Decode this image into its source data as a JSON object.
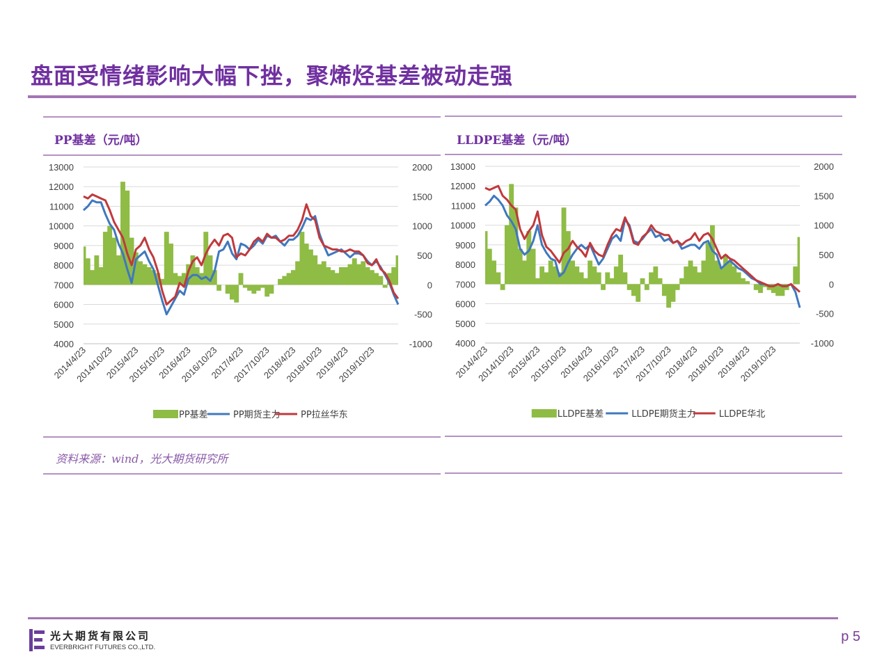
{
  "page": {
    "title": "盘面受情绪影响大幅下挫，聚烯烃基差被动走强",
    "source": "资料来源：wind，光大期货研究所",
    "page_number": "p 5",
    "company_cn": "光大期货有限公司",
    "company_en": "EVERBRIGHT FUTURES CO.,LTD."
  },
  "colors": {
    "accent": "#7030a0",
    "rule": "#a474b5",
    "basis": "#8fbc45",
    "futures": "#3f78be",
    "spot": "#c0393c",
    "grid": "#d9d9d9"
  },
  "icons": {
    "logo": "everbright-logo-icon"
  },
  "chart_data": [
    {
      "type": "line",
      "title": "PP基差（元/吨）",
      "x_tick_labels": [
        "2014/4/23",
        "2014/10/23",
        "2015/4/23",
        "2015/10/23",
        "2016/4/23",
        "2016/10/23",
        "2017/4/23",
        "2017/10/23",
        "2018/4/23",
        "2018/10/23",
        "2019/4/23",
        "2019/10/23"
      ],
      "x_ticks": [
        0,
        6,
        12,
        18,
        24,
        30,
        36,
        42,
        48,
        54,
        60,
        66
      ],
      "x_range": [
        0,
        72
      ],
      "y_left": {
        "ylim": [
          4000,
          13000
        ],
        "ticks": [
          "13000",
          "12000",
          "11000",
          "10000",
          "9000",
          "8000",
          "7000",
          "6000",
          "5000",
          "4000"
        ]
      },
      "y_right": {
        "ylim": [
          -1000,
          2000
        ],
        "ticks": [
          "2000",
          "1500",
          "1000",
          "500",
          "0",
          "-500",
          "-1000"
        ]
      },
      "series": [
        {
          "name": "PP基差",
          "kind": "area",
          "axis": "right",
          "x": [
            0,
            1,
            2,
            3,
            4,
            5,
            6,
            7,
            8,
            9,
            10,
            11,
            12,
            13,
            14,
            15,
            16,
            17,
            18,
            19,
            20,
            21,
            22,
            23,
            24,
            25,
            26,
            27,
            28,
            29,
            30,
            31,
            32,
            33,
            34,
            35,
            36,
            37,
            38,
            39,
            40,
            41,
            42,
            43,
            44,
            45,
            46,
            47,
            48,
            49,
            50,
            51,
            52,
            53,
            54,
            55,
            56,
            57,
            58,
            59,
            60,
            61,
            62,
            63,
            64,
            65,
            66,
            67,
            68,
            69,
            70,
            71,
            72
          ],
          "values": [
            650,
            450,
            250,
            500,
            300,
            900,
            1000,
            800,
            500,
            1750,
            1600,
            800,
            550,
            400,
            350,
            300,
            250,
            200,
            100,
            900,
            700,
            200,
            150,
            200,
            350,
            500,
            300,
            200,
            900,
            500,
            250,
            -100,
            0,
            -150,
            -250,
            -300,
            200,
            -50,
            -100,
            -150,
            -100,
            -50,
            -200,
            -150,
            0,
            100,
            150,
            200,
            250,
            400,
            900,
            700,
            600,
            500,
            350,
            400,
            300,
            250,
            200,
            300,
            300,
            350,
            450,
            350,
            400,
            300,
            250,
            200,
            150,
            -50,
            200,
            300,
            500
          ]
        },
        {
          "name": "PP期货主力",
          "kind": "line",
          "axis": "left",
          "x": [
            0,
            1,
            2,
            3,
            4,
            5,
            6,
            7,
            8,
            9,
            10,
            11,
            12,
            13,
            14,
            15,
            16,
            17,
            18,
            19,
            20,
            21,
            22,
            23,
            24,
            25,
            26,
            27,
            28,
            29,
            30,
            31,
            32,
            33,
            34,
            35,
            36,
            37,
            38,
            39,
            40,
            41,
            42,
            43,
            44,
            45,
            46,
            47,
            48,
            49,
            50,
            51,
            52,
            53,
            54,
            55,
            56,
            57,
            58,
            59,
            60,
            61,
            62,
            63,
            64,
            65,
            66,
            67,
            68,
            69,
            70,
            71,
            72
          ],
          "values": [
            10800,
            11000,
            11300,
            11200,
            11200,
            10600,
            10100,
            9800,
            9100,
            8600,
            7800,
            7100,
            8300,
            8500,
            8700,
            8200,
            7800,
            7000,
            6200,
            5500,
            5900,
            6300,
            6700,
            6500,
            7300,
            7500,
            7500,
            7300,
            7400,
            7200,
            7700,
            8700,
            8800,
            9200,
            8600,
            8300,
            9100,
            9000,
            8800,
            9000,
            9300,
            9100,
            9500,
            9400,
            9500,
            9200,
            9000,
            9300,
            9300,
            9500,
            9900,
            10400,
            10300,
            10500,
            9600,
            9000,
            8500,
            8600,
            8700,
            8800,
            8600,
            8400,
            8600,
            8600,
            8500,
            8200,
            8000,
            8200,
            7900,
            7500,
            7100,
            6500,
            6000
          ]
        },
        {
          "name": "PP拉丝华东",
          "kind": "line",
          "axis": "left",
          "x": [
            0,
            1,
            2,
            3,
            4,
            5,
            6,
            7,
            8,
            9,
            10,
            11,
            12,
            13,
            14,
            15,
            16,
            17,
            18,
            19,
            20,
            21,
            22,
            23,
            24,
            25,
            26,
            27,
            28,
            29,
            30,
            31,
            32,
            33,
            34,
            35,
            36,
            37,
            38,
            39,
            40,
            41,
            42,
            43,
            44,
            45,
            46,
            47,
            48,
            49,
            50,
            51,
            52,
            53,
            54,
            55,
            56,
            57,
            58,
            59,
            60,
            61,
            62,
            63,
            64,
            65,
            66,
            67,
            68,
            69,
            70,
            71,
            72
          ],
          "values": [
            11500,
            11400,
            11600,
            11500,
            11400,
            11300,
            10800,
            10200,
            9800,
            9400,
            8600,
            8000,
            8800,
            9000,
            9400,
            8800,
            8400,
            7700,
            6700,
            6000,
            6200,
            6400,
            7100,
            6900,
            7700,
            8200,
            8400,
            8000,
            8600,
            9000,
            9300,
            9000,
            9500,
            9600,
            9400,
            8400,
            8600,
            8500,
            8800,
            9200,
            9400,
            9200,
            9600,
            9400,
            9400,
            9200,
            9300,
            9500,
            9500,
            9800,
            10300,
            11100,
            10500,
            10300,
            9400,
            9000,
            8900,
            8800,
            8800,
            8700,
            8700,
            8800,
            8700,
            8700,
            8500,
            8100,
            8000,
            8300,
            7800,
            7600,
            7200,
            6600,
            6300
          ]
        }
      ]
    },
    {
      "type": "line",
      "title": "LLDPE基差（元/吨）",
      "x_tick_labels": [
        "2014/4/23",
        "2014/10/23",
        "2015/4/23",
        "2015/10/23",
        "2016/4/23",
        "2016/10/23",
        "2017/4/23",
        "2017/10/23",
        "2018/4/23",
        "2018/10/23",
        "2019/4/23",
        "2019/10/23"
      ],
      "x_ticks": [
        0,
        6,
        12,
        18,
        24,
        30,
        36,
        42,
        48,
        54,
        60,
        66
      ],
      "x_range": [
        0,
        72
      ],
      "y_left": {
        "ylim": [
          4000,
          13000
        ],
        "ticks": [
          "13000",
          "12000",
          "11000",
          "10000",
          "9000",
          "8000",
          "7000",
          "6000",
          "5000",
          "4000"
        ]
      },
      "y_right": {
        "ylim": [
          -1000,
          2000
        ],
        "ticks": [
          "2000",
          "1500",
          "1000",
          "500",
          "0",
          "-500",
          "-1000"
        ]
      },
      "series": [
        {
          "name": "LLDPE基差",
          "kind": "area",
          "axis": "right",
          "x": [
            0,
            1,
            2,
            3,
            4,
            5,
            6,
            7,
            8,
            9,
            10,
            11,
            12,
            13,
            14,
            15,
            16,
            17,
            18,
            19,
            20,
            21,
            22,
            23,
            24,
            25,
            26,
            27,
            28,
            29,
            30,
            31,
            32,
            33,
            34,
            35,
            36,
            37,
            38,
            39,
            40,
            41,
            42,
            43,
            44,
            45,
            46,
            47,
            48,
            49,
            50,
            51,
            52,
            53,
            54,
            55,
            56,
            57,
            58,
            59,
            60,
            61,
            62,
            63,
            64,
            65,
            66,
            67,
            68,
            69,
            70,
            71,
            72
          ],
          "values": [
            900,
            600,
            400,
            200,
            -100,
            1000,
            1700,
            1300,
            600,
            400,
            900,
            600,
            100,
            300,
            200,
            400,
            300,
            200,
            1300,
            900,
            400,
            300,
            200,
            100,
            400,
            300,
            200,
            -100,
            200,
            100,
            300,
            500,
            200,
            -100,
            -200,
            -300,
            100,
            -100,
            200,
            300,
            100,
            -200,
            -400,
            -300,
            -100,
            100,
            300,
            400,
            300,
            200,
            400,
            700,
            1000,
            400,
            300,
            500,
            400,
            300,
            200,
            100,
            50,
            0,
            -100,
            -150,
            -50,
            -100,
            -150,
            -200,
            -200,
            -100,
            0,
            300,
            800
          ]
        },
        {
          "name": "LLDPE期货主力",
          "kind": "line",
          "axis": "left",
          "x": [
            0,
            1,
            2,
            3,
            4,
            5,
            6,
            7,
            8,
            9,
            10,
            11,
            12,
            13,
            14,
            15,
            16,
            17,
            18,
            19,
            20,
            21,
            22,
            23,
            24,
            25,
            26,
            27,
            28,
            29,
            30,
            31,
            32,
            33,
            34,
            35,
            36,
            37,
            38,
            39,
            40,
            41,
            42,
            43,
            44,
            45,
            46,
            47,
            48,
            49,
            50,
            51,
            52,
            53,
            54,
            55,
            56,
            57,
            58,
            59,
            60,
            61,
            62,
            63,
            64,
            65,
            66,
            67,
            68,
            69,
            70,
            71,
            72
          ],
          "values": [
            11000,
            11200,
            11500,
            11300,
            11000,
            10500,
            10200,
            9800,
            8800,
            8500,
            8700,
            9200,
            10000,
            9000,
            8600,
            8300,
            8200,
            7400,
            7600,
            8100,
            8500,
            8800,
            9000,
            8800,
            9000,
            8500,
            8000,
            8300,
            8800,
            9300,
            9500,
            9200,
            10300,
            10000,
            9200,
            9100,
            9300,
            9600,
            9800,
            9400,
            9500,
            9200,
            9300,
            9100,
            9200,
            8800,
            8900,
            9000,
            9000,
            8800,
            9100,
            9200,
            8700,
            8500,
            7800,
            8000,
            8200,
            8000,
            7800,
            7700,
            7500,
            7300,
            7200,
            7000,
            7000,
            6900,
            6900,
            7000,
            6900,
            6900,
            7000,
            6600,
            5800
          ]
        },
        {
          "name": "LLDPE华北",
          "kind": "line",
          "axis": "left",
          "x": [
            0,
            1,
            2,
            3,
            4,
            5,
            6,
            7,
            8,
            9,
            10,
            11,
            12,
            13,
            14,
            15,
            16,
            17,
            18,
            19,
            20,
            21,
            22,
            23,
            24,
            25,
            26,
            27,
            28,
            29,
            30,
            31,
            32,
            33,
            34,
            35,
            36,
            37,
            38,
            39,
            40,
            41,
            42,
            43,
            44,
            45,
            46,
            47,
            48,
            49,
            50,
            51,
            52,
            53,
            54,
            55,
            56,
            57,
            58,
            59,
            60,
            61,
            62,
            63,
            64,
            65,
            66,
            67,
            68,
            69,
            70,
            71,
            72
          ],
          "values": [
            11900,
            11800,
            11900,
            12000,
            11500,
            11300,
            11000,
            10800,
            9800,
            9300,
            9700,
            10000,
            10700,
            9500,
            8900,
            8700,
            8400,
            8100,
            8600,
            8800,
            9200,
            8900,
            8700,
            8400,
            9100,
            8700,
            8500,
            8400,
            9000,
            9500,
            9800,
            9700,
            10400,
            9900,
            9100,
            9000,
            9400,
            9600,
            10000,
            9700,
            9600,
            9500,
            9500,
            9100,
            9200,
            9000,
            9200,
            9300,
            9600,
            9200,
            9500,
            9600,
            9300,
            8800,
            8300,
            8500,
            8300,
            8200,
            8000,
            7800,
            7600,
            7400,
            7200,
            7100,
            7000,
            6900,
            6900,
            7000,
            6900,
            6900,
            7000,
            6800,
            6600
          ]
        }
      ]
    }
  ]
}
